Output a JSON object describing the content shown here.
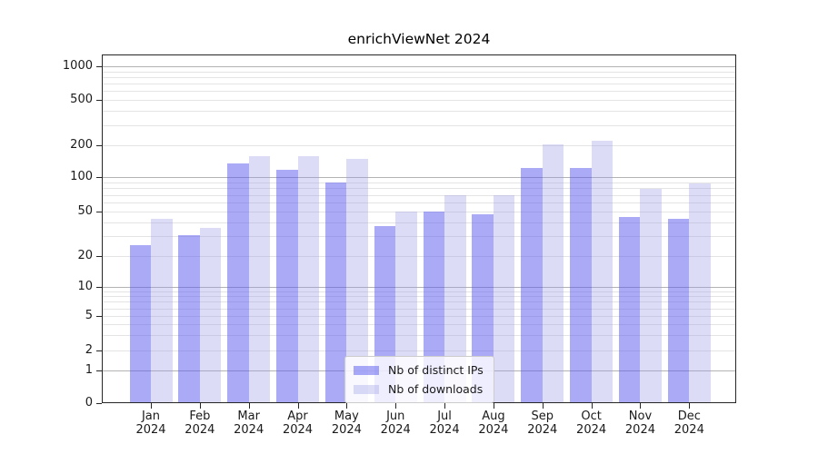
{
  "chart_data": {
    "type": "bar",
    "title": "enrichViewNet 2024",
    "x_categories": [
      "Jan",
      "Feb",
      "Mar",
      "Apr",
      "May",
      "Jun",
      "Jul",
      "Aug",
      "Sep",
      "Oct",
      "Nov",
      "Dec"
    ],
    "x_year": "2024",
    "series": [
      {
        "name": "Nb of distinct IPs",
        "color": "#5555f0",
        "opacity": 0.5,
        "values": [
          25,
          31,
          135,
          117,
          90,
          37,
          50,
          47,
          122,
          122,
          45,
          43
        ]
      },
      {
        "name": "Nb of downloads",
        "color": "#9b9be8",
        "opacity": 0.35,
        "values": [
          43,
          36,
          158,
          158,
          148,
          50,
          69,
          70,
          202,
          218,
          79,
          88
        ]
      }
    ],
    "y_scale": "symlog",
    "y_ticks": [
      0,
      1,
      2,
      5,
      10,
      20,
      50,
      100,
      200,
      500,
      1000
    ],
    "ylim": [
      0,
      1300
    ],
    "xlabel": "",
    "ylabel": "",
    "grid": true,
    "legend_position": "lower center",
    "colors": {
      "grid_minor": "#e4e4e4",
      "grid_major": "#b3b3b3",
      "axis": "#262626",
      "text": "#1a1a1a",
      "background": "#ffffff"
    }
  }
}
